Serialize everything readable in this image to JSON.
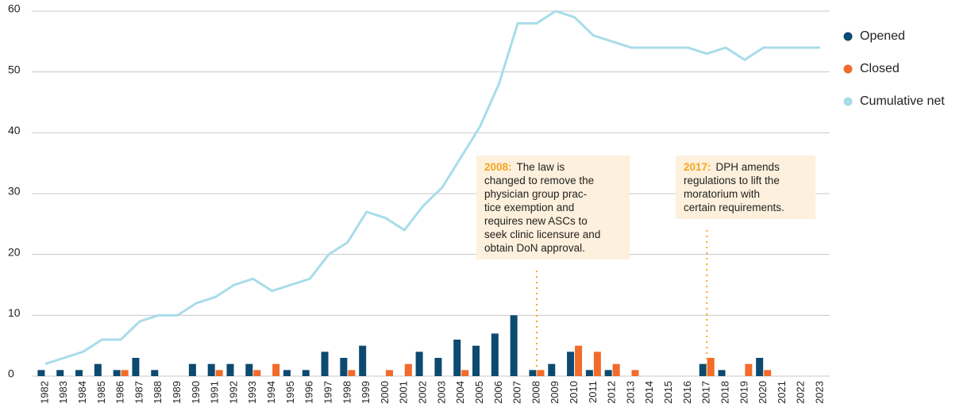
{
  "chart_data": {
    "type": "bar_line",
    "categories": [
      "1982",
      "1983",
      "1984",
      "1985",
      "1986",
      "1987",
      "1988",
      "1989",
      "1990",
      "1991",
      "1992",
      "1993",
      "1994",
      "1995",
      "1996",
      "1997",
      "1998",
      "1999",
      "2000",
      "2001",
      "2002",
      "2003",
      "2004",
      "2005",
      "2006",
      "2007",
      "2008",
      "2009",
      "2010",
      "2011",
      "2012",
      "2013",
      "2014",
      "2015",
      "2016",
      "2017",
      "2018",
      "2019",
      "2020",
      "2021",
      "2022",
      "2023"
    ],
    "series": [
      {
        "name": "Opened",
        "color": "#0d4a70",
        "kind": "bar",
        "values": [
          1,
          1,
          1,
          2,
          1,
          3,
          1,
          0,
          2,
          2,
          2,
          2,
          0,
          1,
          1,
          4,
          3,
          5,
          0,
          0,
          4,
          3,
          6,
          5,
          7,
          10,
          1,
          2,
          4,
          1,
          1,
          0,
          0,
          0,
          0,
          2,
          1,
          0,
          3,
          0,
          0,
          0
        ]
      },
      {
        "name": "Closed",
        "color": "#f26b2a",
        "kind": "bar",
        "values": [
          0,
          0,
          0,
          0,
          1,
          0,
          0,
          0,
          0,
          1,
          0,
          1,
          2,
          0,
          0,
          0,
          1,
          0,
          1,
          2,
          0,
          0,
          1,
          0,
          0,
          0,
          1,
          0,
          5,
          4,
          2,
          1,
          0,
          0,
          0,
          3,
          0,
          2,
          1,
          0,
          0,
          0
        ]
      },
      {
        "name": "Cumulative net",
        "color": "#a8dcea",
        "kind": "line",
        "values": [
          2,
          3,
          4,
          6,
          6,
          9,
          10,
          10,
          12,
          13,
          15,
          16,
          14,
          15,
          16,
          20,
          22,
          27,
          26,
          24,
          28,
          31,
          36,
          41,
          48,
          58,
          58,
          60,
          59,
          56,
          55,
          54,
          54,
          54,
          54,
          53,
          54,
          52,
          54,
          54,
          54,
          54
        ]
      }
    ],
    "ylim": [
      0,
      60
    ],
    "yticks": [
      0,
      10,
      20,
      30,
      40,
      50,
      60
    ],
    "grid": true,
    "legend": "right",
    "annotations": [
      {
        "label": "2008:",
        "lines": [
          "The law is",
          "changed to remove the",
          "physician group prac-",
          "tice exemption and",
          "requires new ASCs to",
          "seek clinic licensure and",
          "obtain DoN approval."
        ]
      },
      {
        "label": "2017:",
        "lines": [
          "DPH amends",
          "regulations to lift the",
          "moratorium with",
          "certain requirements."
        ]
      }
    ]
  }
}
